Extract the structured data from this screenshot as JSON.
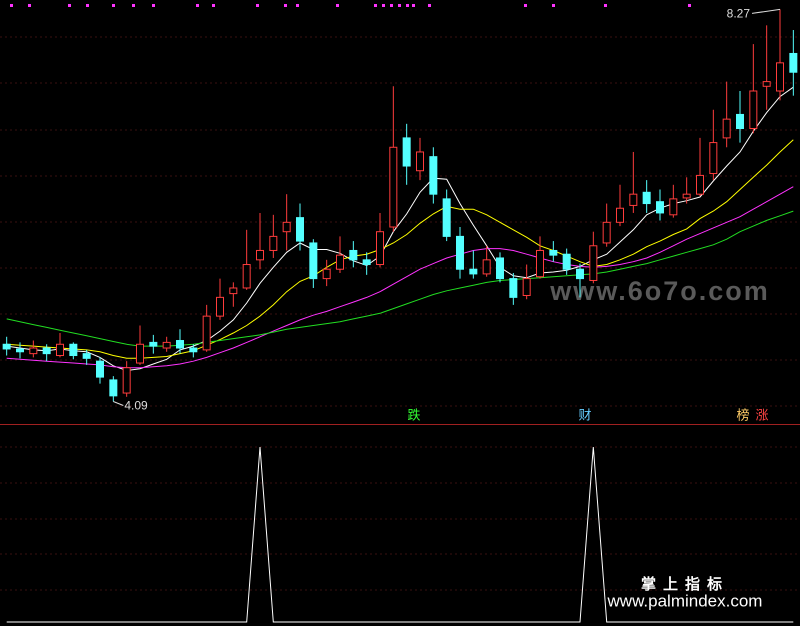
{
  "chart_data": {
    "type": "candlestick",
    "ylim": [
      3.85,
      8.37
    ],
    "candles": [
      [
        4.7,
        4.78,
        4.58,
        4.65
      ],
      [
        4.65,
        4.72,
        4.55,
        4.62
      ],
      [
        4.6,
        4.74,
        4.56,
        4.66
      ],
      [
        4.66,
        4.7,
        4.52,
        4.6
      ],
      [
        4.58,
        4.82,
        4.56,
        4.7
      ],
      [
        4.7,
        4.72,
        4.54,
        4.58
      ],
      [
        4.6,
        4.64,
        4.48,
        4.55
      ],
      [
        4.52,
        4.56,
        4.28,
        4.35
      ],
      [
        4.32,
        4.36,
        4.09,
        4.15
      ],
      [
        4.18,
        4.52,
        4.14,
        4.45
      ],
      [
        4.5,
        4.9,
        4.48,
        4.7
      ],
      [
        4.72,
        4.8,
        4.6,
        4.68
      ],
      [
        4.66,
        4.78,
        4.62,
        4.72
      ],
      [
        4.74,
        4.86,
        4.6,
        4.66
      ],
      [
        4.66,
        4.7,
        4.56,
        4.62
      ],
      [
        4.64,
        5.12,
        4.62,
        5.0
      ],
      [
        5.0,
        5.4,
        4.96,
        5.2
      ],
      [
        5.24,
        5.36,
        5.1,
        5.3
      ],
      [
        5.3,
        5.92,
        5.28,
        5.55
      ],
      [
        5.6,
        6.1,
        5.5,
        5.7
      ],
      [
        5.7,
        6.08,
        5.62,
        5.85
      ],
      [
        5.9,
        6.3,
        5.7,
        6.0
      ],
      [
        6.05,
        6.2,
        5.7,
        5.8
      ],
      [
        5.78,
        5.82,
        5.3,
        5.4
      ],
      [
        5.4,
        5.6,
        5.32,
        5.5
      ],
      [
        5.5,
        5.85,
        5.46,
        5.65
      ],
      [
        5.7,
        5.8,
        5.52,
        5.6
      ],
      [
        5.6,
        5.68,
        5.44,
        5.55
      ],
      [
        5.55,
        6.1,
        5.52,
        5.9
      ],
      [
        5.95,
        7.45,
        5.9,
        6.8
      ],
      [
        6.9,
        7.05,
        6.4,
        6.6
      ],
      [
        6.55,
        6.9,
        6.45,
        6.75
      ],
      [
        6.7,
        6.8,
        6.2,
        6.3
      ],
      [
        6.25,
        6.35,
        5.8,
        5.85
      ],
      [
        5.85,
        5.95,
        5.4,
        5.5
      ],
      [
        5.5,
        5.7,
        5.4,
        5.45
      ],
      [
        5.45,
        5.75,
        5.42,
        5.6
      ],
      [
        5.62,
        5.68,
        5.36,
        5.4
      ],
      [
        5.4,
        5.46,
        5.12,
        5.2
      ],
      [
        5.22,
        5.55,
        5.18,
        5.4
      ],
      [
        5.42,
        5.85,
        5.4,
        5.7
      ],
      [
        5.7,
        5.8,
        5.58,
        5.65
      ],
      [
        5.66,
        5.72,
        5.44,
        5.5
      ],
      [
        5.5,
        5.56,
        5.2,
        5.4
      ],
      [
        5.38,
        5.9,
        5.35,
        5.75
      ],
      [
        5.78,
        6.2,
        5.74,
        6.0
      ],
      [
        6.0,
        6.4,
        5.96,
        6.15
      ],
      [
        6.18,
        6.75,
        6.1,
        6.3
      ],
      [
        6.32,
        6.45,
        6.1,
        6.2
      ],
      [
        6.22,
        6.35,
        6.02,
        6.1
      ],
      [
        6.08,
        6.4,
        6.05,
        6.25
      ],
      [
        6.26,
        6.48,
        6.2,
        6.3
      ],
      [
        6.3,
        6.9,
        6.28,
        6.5
      ],
      [
        6.52,
        7.2,
        6.45,
        6.85
      ],
      [
        6.9,
        7.5,
        6.8,
        7.1
      ],
      [
        7.15,
        7.4,
        6.85,
        7.0
      ],
      [
        7.0,
        7.9,
        6.95,
        7.4
      ],
      [
        7.45,
        8.1,
        7.2,
        7.5
      ],
      [
        7.4,
        8.27,
        7.3,
        7.7
      ],
      [
        7.8,
        8.05,
        7.35,
        7.6
      ]
    ],
    "up_color": "#ff3c3c",
    "down_color": "#54ffff",
    "series": [
      {
        "color": "#ffffff",
        "values": [
          4.68,
          4.66,
          4.64,
          4.63,
          4.65,
          4.63,
          4.62,
          4.56,
          4.47,
          4.42,
          4.44,
          4.49,
          4.54,
          4.64,
          4.68,
          4.74,
          4.84,
          4.96,
          5.14,
          5.35,
          5.52,
          5.68,
          5.78,
          5.71,
          5.71,
          5.67,
          5.59,
          5.54,
          5.64,
          5.9,
          6.09,
          6.32,
          6.47,
          6.46,
          6.2,
          5.97,
          5.75,
          5.52,
          5.43,
          5.41,
          5.46,
          5.47,
          5.49,
          5.53,
          5.6,
          5.66,
          5.79,
          5.92,
          6.08,
          6.15,
          6.2,
          6.23,
          6.27,
          6.44,
          6.6,
          6.75,
          6.97,
          7.17,
          7.34,
          7.44
        ]
      },
      {
        "color": "#ffff00",
        "values": [
          4.7,
          4.69,
          4.68,
          4.67,
          4.66,
          4.65,
          4.64,
          4.62,
          4.58,
          4.55,
          4.55,
          4.56,
          4.57,
          4.6,
          4.63,
          4.69,
          4.75,
          4.82,
          4.9,
          5.0,
          5.12,
          5.26,
          5.37,
          5.43,
          5.52,
          5.6,
          5.64,
          5.66,
          5.71,
          5.78,
          5.87,
          5.99,
          6.09,
          6.17,
          6.14,
          6.14,
          6.08,
          6.0,
          5.92,
          5.84,
          5.75,
          5.7,
          5.64,
          5.58,
          5.53,
          5.55,
          5.6,
          5.66,
          5.74,
          5.8,
          5.87,
          5.93,
          6.04,
          6.12,
          6.22,
          6.35,
          6.48,
          6.61,
          6.75,
          6.88
        ]
      },
      {
        "color": "#ff33ff",
        "values": [
          4.55,
          4.54,
          4.53,
          4.52,
          4.51,
          4.5,
          4.49,
          4.48,
          4.46,
          4.45,
          4.45,
          4.46,
          4.47,
          4.49,
          4.52,
          4.56,
          4.61,
          4.66,
          4.72,
          4.78,
          4.84,
          4.9,
          4.96,
          5.01,
          5.05,
          5.1,
          5.15,
          5.2,
          5.26,
          5.34,
          5.42,
          5.5,
          5.56,
          5.62,
          5.66,
          5.7,
          5.72,
          5.72,
          5.7,
          5.66,
          5.62,
          5.58,
          5.55,
          5.53,
          5.52,
          5.53,
          5.55,
          5.58,
          5.62,
          5.68,
          5.75,
          5.82,
          5.88,
          5.94,
          6.0,
          6.06,
          6.14,
          6.22,
          6.3,
          6.38
        ]
      },
      {
        "color": "#22dd22",
        "values": [
          4.97,
          4.94,
          4.91,
          4.88,
          4.85,
          4.82,
          4.79,
          4.76,
          4.73,
          4.7,
          4.68,
          4.68,
          4.68,
          4.69,
          4.7,
          4.72,
          4.74,
          4.76,
          4.78,
          4.8,
          4.83,
          4.86,
          4.88,
          4.9,
          4.92,
          4.94,
          4.97,
          5.0,
          5.03,
          5.08,
          5.13,
          5.18,
          5.23,
          5.27,
          5.3,
          5.33,
          5.36,
          5.38,
          5.39,
          5.4,
          5.41,
          5.42,
          5.43,
          5.44,
          5.45,
          5.47,
          5.5,
          5.53,
          5.56,
          5.6,
          5.64,
          5.68,
          5.72,
          5.76,
          5.82,
          5.9,
          5.96,
          6.02,
          6.07,
          6.12
        ]
      }
    ],
    "max_label": 8.27,
    "min_label": 4.09,
    "signals": [
      {
        "text": "跌",
        "color": "#33ff33"
      },
      {
        "text": "财",
        "color": "#66ccff"
      },
      {
        "text": "榜",
        "color": "#ffcc66"
      },
      {
        "text": "涨",
        "color": "#ff4444"
      }
    ],
    "indicator": {
      "type": "line",
      "color": "#ffffff",
      "ylim": [
        0,
        1
      ],
      "values": [
        0,
        0,
        0,
        0,
        0,
        0,
        0,
        0,
        0,
        0,
        0,
        0,
        0,
        0,
        0,
        0,
        0,
        0,
        0,
        1,
        0,
        0,
        0,
        0,
        0,
        0,
        0,
        0,
        0,
        0,
        0,
        0,
        0,
        0,
        0,
        0,
        0,
        0,
        0,
        0,
        0,
        0,
        0,
        0,
        1,
        0,
        0,
        0,
        0,
        0,
        0,
        0,
        0,
        0,
        0,
        0,
        0,
        0,
        0,
        0
      ]
    }
  },
  "watermarks": {
    "site": "www.6o7o.com",
    "brand": "掌上指标",
    "url": "www.palmindex.com"
  }
}
